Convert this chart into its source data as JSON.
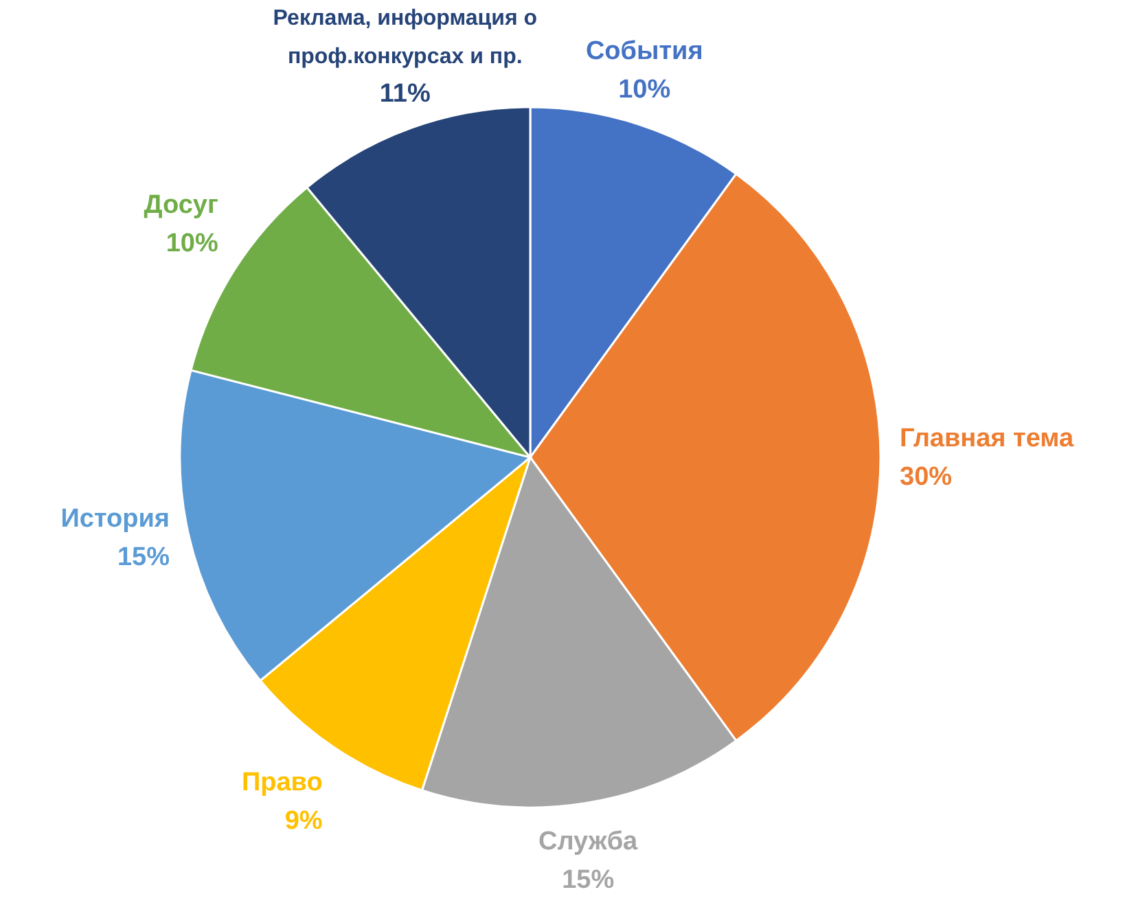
{
  "chart_data": {
    "type": "pie",
    "categories": [
      "События",
      "Главная тема",
      "Служба",
      "Право",
      "История",
      "Досуг",
      "Реклама, информация о проф.конкурсах и пр."
    ],
    "values": [
      10,
      30,
      15,
      9,
      15,
      10,
      11
    ],
    "colors": [
      "#4472c4",
      "#ed7d31",
      "#a5a5a5",
      "#ffc000",
      "#5b9bd5",
      "#70ad47",
      "#264478"
    ],
    "value_labels": [
      "10%",
      "30%",
      "15%",
      "9%",
      "15%",
      "10%",
      "11%"
    ]
  }
}
